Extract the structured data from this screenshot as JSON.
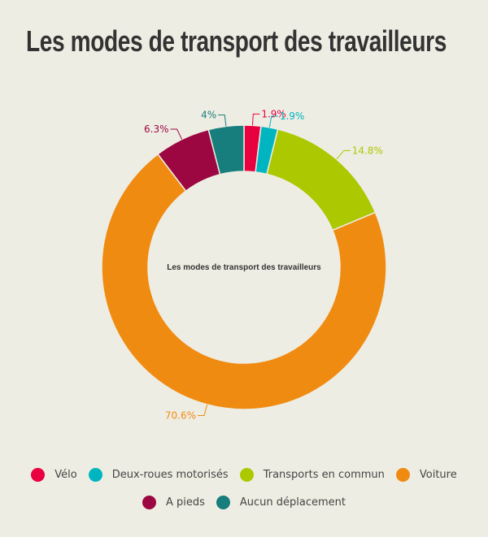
{
  "title": "Les modes de transport des travailleurs",
  "chart_data": {
    "type": "pie",
    "variant": "donut",
    "title": "Les modes de transport des travailleurs",
    "center_label": "Les modes de transport des travailleurs",
    "start": "top, clockwise",
    "legend_position": "bottom",
    "slices": [
      {
        "name": "Vélo",
        "value": 1.9,
        "label": "1.9%",
        "color": "#e8003f"
      },
      {
        "name": "Deux-roues motorisés",
        "value": 1.9,
        "label": "1.9%",
        "color": "#00b5c0"
      },
      {
        "name": "Transports en commun",
        "value": 14.8,
        "label": "14.8%",
        "color": "#acc800"
      },
      {
        "name": "Voiture",
        "value": 70.6,
        "label": "70.6%",
        "color": "#f08b12"
      },
      {
        "name": "A pieds",
        "value": 6.3,
        "label": "6.3%",
        "color": "#9c0641"
      },
      {
        "name": "Aucun déplacement",
        "value": 4,
        "label": "4%",
        "color": "#177d7d"
      }
    ]
  }
}
